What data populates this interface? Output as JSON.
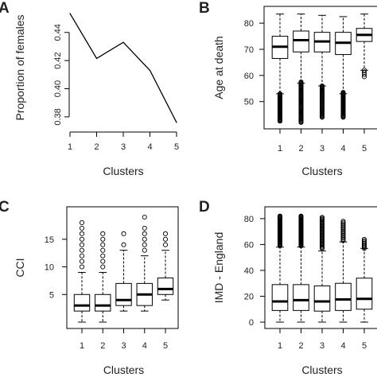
{
  "figure": {
    "panels": [
      "A",
      "B",
      "C",
      "D"
    ]
  },
  "chart_data": [
    {
      "panel": "A",
      "type": "line",
      "xlabel": "Clusters",
      "ylabel": "Proportion of females",
      "x": [
        1,
        2,
        3,
        4,
        5
      ],
      "y": [
        0.4535,
        0.4215,
        0.433,
        0.413,
        0.376
      ],
      "xlim": [
        1,
        5
      ],
      "ylim": [
        0.376,
        0.454
      ],
      "xticks": [
        1,
        2,
        3,
        4,
        5
      ],
      "yticks": [
        0.38,
        0.4,
        0.42,
        0.44
      ],
      "ytick_labels": [
        "0.38",
        "0.40",
        "0.42",
        "0.44"
      ],
      "grid": false,
      "line_color": "#000000"
    },
    {
      "panel": "B",
      "type": "box",
      "xlabel": "Clusters",
      "ylabel": "Age at death",
      "categories": [
        "1",
        "2",
        "3",
        "4",
        "5"
      ],
      "ylim": [
        42,
        84
      ],
      "yticks": [
        50,
        60,
        70,
        80
      ],
      "ytick_labels": [
        "50",
        "60",
        "70",
        "80"
      ],
      "grid": false,
      "boxes": [
        {
          "low": 53,
          "q1": 66.5,
          "median": 71,
          "q3": 75,
          "high": 83.5,
          "outliers_from": 42.5,
          "outliers_to": 53,
          "outlier_count": 40
        },
        {
          "low": 57,
          "q1": 69,
          "median": 73.5,
          "q3": 77,
          "high": 83.5,
          "outliers_from": 42,
          "outliers_to": 57.5,
          "outlier_count": 50
        },
        {
          "low": 56,
          "q1": 69,
          "median": 73,
          "q3": 76.5,
          "high": 83,
          "outliers_from": 44,
          "outliers_to": 56,
          "outlier_count": 40
        },
        {
          "low": 53,
          "q1": 68,
          "median": 72.5,
          "q3": 76.5,
          "high": 82.5,
          "outliers_from": 44,
          "outliers_to": 53.5,
          "outlier_count": 35
        },
        {
          "low": 62,
          "q1": 73,
          "median": 75.5,
          "q3": 78,
          "high": 83.5,
          "outliers_from": 59.5,
          "outliers_to": 62,
          "outlier_count": 4
        }
      ]
    },
    {
      "panel": "C",
      "type": "box",
      "xlabel": "Clusters",
      "ylabel": "CCI",
      "categories": [
        "1",
        "2",
        "3",
        "4",
        "5"
      ],
      "ylim": [
        0,
        19
      ],
      "yticks": [
        5,
        10,
        15
      ],
      "ytick_labels": [
        "5",
        "10",
        "15"
      ],
      "grid": false,
      "boxes": [
        {
          "low": 0,
          "q1": 2,
          "median": 3,
          "q3": 5,
          "high": 9,
          "outliers": [
            10,
            11,
            12,
            13,
            14,
            15,
            16,
            17,
            18
          ]
        },
        {
          "low": 0,
          "q1": 2,
          "median": 3,
          "q3": 5,
          "high": 9,
          "outliers": [
            10,
            11,
            12,
            13,
            14,
            15,
            16
          ]
        },
        {
          "low": 2,
          "q1": 3,
          "median": 4,
          "q3": 7,
          "high": 13,
          "outliers": [
            14,
            16
          ]
        },
        {
          "low": 2,
          "q1": 3,
          "median": 5,
          "q3": 7,
          "high": 12,
          "outliers": [
            13,
            14,
            15,
            16,
            17,
            19
          ]
        },
        {
          "low": 4,
          "q1": 5,
          "median": 6,
          "q3": 8,
          "high": 13,
          "outliers": [
            14,
            15,
            16
          ]
        }
      ]
    },
    {
      "panel": "D",
      "type": "box",
      "xlabel": "Clusters",
      "ylabel": "IMD - England",
      "categories": [
        "1",
        "2",
        "3",
        "4",
        "5"
      ],
      "ylim": [
        0,
        83
      ],
      "yticks": [
        0,
        20,
        40,
        60,
        80
      ],
      "ytick_labels": [
        "0",
        "20",
        "40",
        "60",
        "80"
      ],
      "grid": false,
      "boxes": [
        {
          "low": 0,
          "q1": 9,
          "median": 16,
          "q3": 29,
          "high": 58,
          "outliers_from": 59,
          "outliers_to": 82,
          "outlier_count": 45
        },
        {
          "low": 0,
          "q1": 9,
          "median": 17,
          "q3": 29,
          "high": 58,
          "outliers_from": 59,
          "outliers_to": 82,
          "outlier_count": 45
        },
        {
          "low": 0,
          "q1": 8.5,
          "median": 16,
          "q3": 28,
          "high": 55,
          "outliers_from": 57,
          "outliers_to": 81,
          "outlier_count": 30
        },
        {
          "low": 0,
          "q1": 9,
          "median": 17.5,
          "q3": 30,
          "high": 62,
          "outliers_from": 63,
          "outliers_to": 78,
          "outlier_count": 16
        },
        {
          "low": 0,
          "q1": 10,
          "median": 18,
          "q3": 34,
          "high": 57,
          "outliers_from": 57,
          "outliers_to": 64,
          "outlier_count": 8
        }
      ]
    }
  ]
}
